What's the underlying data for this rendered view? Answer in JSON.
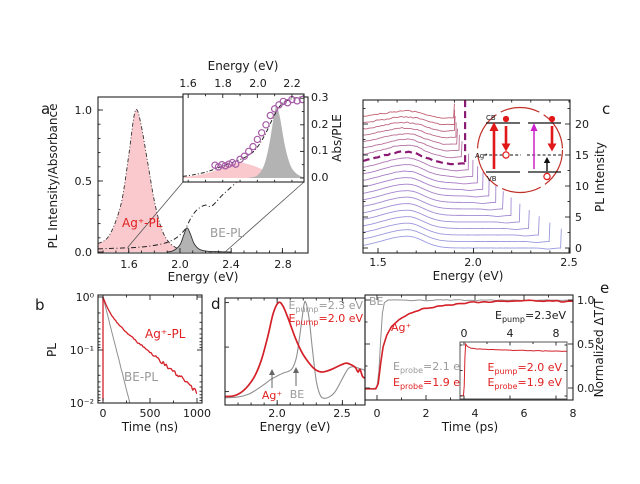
{
  "figure": {
    "panel_letters": {
      "a": "a",
      "b": "b",
      "c": "c",
      "d": "d",
      "e": "e"
    },
    "colors": {
      "red": "#d42028",
      "red_text": "#e01f1f",
      "gray_curve": "#909090",
      "gray_text": "#9a9a9a",
      "pink_fill": "#f9c9cd",
      "gray_fill": "#b3b3b3",
      "purple_marker": "#a65ba6",
      "waterfall_bottom": "#9a9ce0",
      "waterfall_mid": "#a87cc6",
      "waterfall_top": "#c45f70",
      "waterfall_bold": "#8b1a72",
      "magenta": "#cc22cc",
      "black": "#1a1a1a"
    },
    "diagram": {
      "cb": "CB",
      "ag": "Ag⁺",
      "vb": "VB"
    }
  },
  "chart_data": [
    {
      "id": "a_main",
      "type": "area",
      "title": "",
      "xlabel": "Energy (eV)",
      "ylabel": "PL Intensity/Absorbance",
      "xlim": [
        1.36,
        3.0
      ],
      "ylim": [
        0,
        1.09
      ],
      "xticks": [
        1.6,
        2.0,
        2.4,
        2.8
      ],
      "xticks_text": [
        "1.6",
        "2.0",
        "2.4",
        "2.8"
      ],
      "yticks": [
        0.0,
        0.5,
        1.0
      ],
      "yticks_text": [
        "0.0",
        "0.5",
        "1.0"
      ],
      "ag_label": "Ag⁺-PL",
      "be_label": "BE-PL",
      "series": {
        "ag_pl": [
          [
            1.36,
            0.06
          ],
          [
            1.41,
            0.08
          ],
          [
            1.45,
            0.12
          ],
          [
            1.5,
            0.22
          ],
          [
            1.55,
            0.38
          ],
          [
            1.6,
            0.68
          ],
          [
            1.64,
            0.95
          ],
          [
            1.665,
            1.0
          ],
          [
            1.7,
            0.88
          ],
          [
            1.75,
            0.62
          ],
          [
            1.8,
            0.36
          ],
          [
            1.85,
            0.18
          ],
          [
            1.9,
            0.085
          ],
          [
            1.96,
            0.035
          ],
          [
            2.02,
            0.015
          ],
          [
            2.1,
            0.005
          ],
          [
            2.2,
            0.002
          ],
          [
            2.35,
            0.001
          ]
        ],
        "be_pl": [
          [
            1.9,
            0.0
          ],
          [
            1.95,
            0.01
          ],
          [
            2.0,
            0.05
          ],
          [
            2.03,
            0.12
          ],
          [
            2.055,
            0.17
          ],
          [
            2.08,
            0.13
          ],
          [
            2.11,
            0.06
          ],
          [
            2.15,
            0.02
          ],
          [
            2.2,
            0.007
          ],
          [
            2.3,
            0.002
          ],
          [
            2.4,
            0.0
          ]
        ],
        "absorbance": [
          [
            1.36,
            0.022
          ],
          [
            1.45,
            0.025
          ],
          [
            1.55,
            0.028
          ],
          [
            1.65,
            0.032
          ],
          [
            1.75,
            0.04
          ],
          [
            1.85,
            0.055
          ],
          [
            1.92,
            0.075
          ],
          [
            1.98,
            0.105
          ],
          [
            2.04,
            0.16
          ],
          [
            2.08,
            0.23
          ],
          [
            2.12,
            0.285
          ],
          [
            2.16,
            0.315
          ],
          [
            2.2,
            0.33
          ],
          [
            2.24,
            0.32
          ],
          [
            2.28,
            0.35
          ],
          [
            2.33,
            0.4
          ],
          [
            2.38,
            0.44
          ],
          [
            2.44,
            0.49
          ]
        ]
      }
    },
    {
      "id": "a_inset",
      "type": "scatter+area",
      "xlabel": "Energy (eV)",
      "ylabel": "Abs/PLE",
      "xlim": [
        1.57,
        2.27
      ],
      "ylim": [
        0,
        0.32
      ],
      "xticks": [
        1.6,
        1.8,
        2.0,
        2.2
      ],
      "xticks_text": [
        "1.6",
        "1.8",
        "2.0",
        "2.2"
      ],
      "yticks": [
        0.0,
        0.1,
        0.2,
        0.3
      ],
      "yticks_text": [
        "0.0",
        "0.1",
        "0.2",
        "0.3"
      ],
      "ple_circles": [
        [
          1.755,
          0.048
        ],
        [
          1.775,
          0.042
        ],
        [
          1.795,
          0.05
        ],
        [
          1.815,
          0.046
        ],
        [
          1.835,
          0.052
        ],
        [
          1.855,
          0.058
        ],
        [
          1.875,
          0.052
        ],
        [
          1.9,
          0.07
        ],
        [
          1.925,
          0.082
        ],
        [
          1.95,
          0.1
        ],
        [
          1.975,
          0.118
        ],
        [
          2.0,
          0.145
        ],
        [
          2.025,
          0.17
        ],
        [
          2.05,
          0.2
        ],
        [
          2.075,
          0.235
        ],
        [
          2.1,
          0.26
        ],
        [
          2.125,
          0.275
        ],
        [
          2.15,
          0.288
        ],
        [
          2.175,
          0.283
        ],
        [
          2.2,
          0.295
        ],
        [
          2.23,
          0.29
        ],
        [
          2.26,
          0.295
        ]
      ],
      "absorbance": [
        [
          1.57,
          0.006
        ],
        [
          1.63,
          0.012
        ],
        [
          1.7,
          0.022
        ],
        [
          1.76,
          0.035
        ],
        [
          1.82,
          0.05
        ],
        [
          1.87,
          0.062
        ],
        [
          1.92,
          0.075
        ],
        [
          1.97,
          0.095
        ],
        [
          2.01,
          0.125
        ],
        [
          2.05,
          0.17
        ],
        [
          2.09,
          0.225
        ],
        [
          2.13,
          0.27
        ],
        [
          2.17,
          0.29
        ],
        [
          2.21,
          0.3
        ],
        [
          2.25,
          0.305
        ],
        [
          2.27,
          0.31
        ]
      ],
      "ag_band": [
        [
          1.57,
          0.004
        ],
        [
          1.65,
          0.01
        ],
        [
          1.72,
          0.02
        ],
        [
          1.78,
          0.035
        ],
        [
          1.84,
          0.05
        ],
        [
          1.9,
          0.058
        ],
        [
          1.96,
          0.05
        ],
        [
          2.02,
          0.035
        ],
        [
          2.08,
          0.02
        ],
        [
          2.14,
          0.01
        ],
        [
          2.2,
          0.004
        ],
        [
          2.27,
          0.001
        ]
      ],
      "be_band": [
        [
          1.95,
          0.001
        ],
        [
          2.0,
          0.01
        ],
        [
          2.04,
          0.05
        ],
        [
          2.07,
          0.13
        ],
        [
          2.095,
          0.23
        ],
        [
          2.11,
          0.27
        ],
        [
          2.13,
          0.23
        ],
        [
          2.16,
          0.12
        ],
        [
          2.19,
          0.05
        ],
        [
          2.22,
          0.02
        ],
        [
          2.25,
          0.007
        ],
        [
          2.27,
          0.003
        ]
      ]
    },
    {
      "id": "c",
      "type": "line-waterfall",
      "xlabel": "Energy (eV)",
      "ylabel_right": "PL Intensity",
      "xlim": [
        1.42,
        2.505
      ],
      "ylim": [
        0,
        24.2
      ],
      "xticks": [
        1.5,
        2.0,
        2.5
      ],
      "xticks_text": [
        "1.5",
        "2.0",
        "2.5"
      ],
      "yticks": [
        0,
        5,
        10,
        15,
        20
      ],
      "yticks_text": [
        "0",
        "5",
        "10",
        "15",
        "20"
      ],
      "n_curves": 21,
      "offset_step": 1.05,
      "peak_center": 1.655,
      "peak_amp": 1.9,
      "cutoffs": [
        2.46,
        2.4,
        2.344,
        2.292,
        2.243,
        2.197,
        2.156,
        2.117,
        2.082,
        2.05,
        2.022,
        1.997,
        1.975,
        1.956,
        1.94,
        1.926,
        1.916,
        1.909,
        1.904,
        1.901,
        1.9
      ],
      "bold_index": 13
    },
    {
      "id": "b",
      "type": "line-log",
      "xlabel": "Time (ns)",
      "ylabel": "PL",
      "xlim": [
        -50,
        1050
      ],
      "ylim_log": [
        0.01,
        1
      ],
      "xticks": [
        0,
        500,
        1000
      ],
      "xticks_text": [
        "0",
        "500",
        "1000"
      ],
      "yticks": [
        1,
        0.1,
        0.01
      ],
      "yticks_text": [
        "10⁰",
        "10⁻¹",
        "10⁻²"
      ],
      "ag_label": "Ag⁺-PL",
      "be_label": "BE-PL",
      "decays": {
        "ag": {
          "a1": 0.52,
          "tau1": 55,
          "a2": 0.48,
          "tau2": 300
        },
        "be": {
          "a1": 1.0,
          "tau1": 62
        }
      }
    },
    {
      "id": "d",
      "type": "line",
      "xlabel": "Energy (eV)",
      "xlim": [
        1.6,
        2.674
      ],
      "ylim": [
        -0.15,
        1.05
      ],
      "xticks": [
        2.0,
        2.5
      ],
      "xticks_text": [
        "2.0",
        "2.5"
      ],
      "legend": {
        "pump23": {
          "e": "E",
          "sub": "pump",
          "rest": "=2.3 eV"
        },
        "pump20": {
          "e": "E",
          "sub": "pump",
          "rest": "=2.0 eV"
        }
      },
      "arrow_labels": {
        "ag": "Ag⁺",
        "be": "BE"
      },
      "arrows_x": [
        1.955,
        2.164
      ],
      "series": {
        "pump23": [
          [
            1.6,
            -0.07
          ],
          [
            1.7,
            -0.06
          ],
          [
            1.78,
            -0.03
          ],
          [
            1.84,
            0.02
          ],
          [
            1.9,
            0.08
          ],
          [
            1.95,
            0.135
          ],
          [
            2.0,
            0.175
          ],
          [
            2.05,
            0.21
          ],
          [
            2.09,
            0.23
          ],
          [
            2.12,
            0.27
          ],
          [
            2.15,
            0.4
          ],
          [
            2.18,
            0.7
          ],
          [
            2.205,
            0.97
          ],
          [
            2.22,
            1.0
          ],
          [
            2.245,
            0.82
          ],
          [
            2.27,
            0.48
          ],
          [
            2.3,
            0.12
          ],
          [
            2.33,
            -0.04
          ],
          [
            2.36,
            -0.075
          ],
          [
            2.4,
            -0.06
          ],
          [
            2.44,
            -0.01
          ],
          [
            2.48,
            0.09
          ],
          [
            2.52,
            0.2
          ],
          [
            2.55,
            0.265
          ],
          [
            2.59,
            0.28
          ],
          [
            2.63,
            0.26
          ],
          [
            2.674,
            0.24
          ]
        ],
        "pump20": [
          [
            1.6,
            -0.055
          ],
          [
            1.66,
            -0.05
          ],
          [
            1.7,
            -0.03
          ],
          [
            1.74,
            0.01
          ],
          [
            1.78,
            0.07
          ],
          [
            1.83,
            0.18
          ],
          [
            1.88,
            0.36
          ],
          [
            1.93,
            0.63
          ],
          [
            1.97,
            0.88
          ],
          [
            2.01,
            1.0
          ],
          [
            2.045,
            0.96
          ],
          [
            2.09,
            0.8
          ],
          [
            2.14,
            0.6
          ],
          [
            2.19,
            0.44
          ],
          [
            2.24,
            0.33
          ],
          [
            2.29,
            0.25
          ],
          [
            2.34,
            0.22
          ],
          [
            2.39,
            0.235
          ],
          [
            2.44,
            0.265
          ],
          [
            2.49,
            0.3
          ],
          [
            2.53,
            0.32
          ],
          [
            2.57,
            0.3
          ],
          [
            2.6,
            0.27
          ],
          [
            2.62,
            0.22
          ],
          [
            2.635,
            0.25
          ],
          [
            2.655,
            0.17
          ],
          [
            2.674,
            0.15
          ]
        ]
      }
    },
    {
      "id": "e",
      "type": "line",
      "xlabel": "Time (ps)",
      "ylabel_right": "Normalized ΔT/T",
      "xlim": [
        -0.49,
        8
      ],
      "ylim": [
        -0.09,
        1.07
      ],
      "xticks": [
        0,
        2,
        4,
        6,
        8
      ],
      "xticks_text": [
        "0",
        "2",
        "4",
        "6",
        "8"
      ],
      "yticks": [
        0.0,
        0.5,
        1.0
      ],
      "yticks_text": [
        "0.0",
        "0.5",
        "1.0"
      ],
      "labels": {
        "be": "BE",
        "ag": "Ag⁺",
        "probe21": {
          "e": "E",
          "sub": "probe",
          "rest": "=2.1 eV"
        },
        "probe19": {
          "e": "E",
          "sub": "probe",
          "rest": "=1.9 eV"
        },
        "pump23": {
          "e": "E",
          "sub": "pump",
          "rest": "=2.3eV"
        }
      },
      "series": {
        "be": [
          [
            -0.49,
            -0.005
          ],
          [
            -0.1,
            -0.005
          ],
          [
            0,
            0.01
          ],
          [
            0.08,
            0.2
          ],
          [
            0.15,
            0.55
          ],
          [
            0.22,
            0.85
          ],
          [
            0.3,
            0.97
          ],
          [
            0.45,
            1.0
          ],
          [
            0.7,
            1.0
          ],
          [
            1.2,
            0.995
          ],
          [
            2,
            0.995
          ],
          [
            3,
            1.0
          ],
          [
            4,
            0.995
          ],
          [
            5,
            1.0
          ],
          [
            6,
            0.995
          ],
          [
            7,
            1.0
          ],
          [
            8,
            0.995
          ]
        ],
        "ag": [
          [
            -0.49,
            -0.01
          ],
          [
            -0.05,
            -0.01
          ],
          [
            0.05,
            0.05
          ],
          [
            0.15,
            0.28
          ],
          [
            0.25,
            0.47
          ],
          [
            0.4,
            0.6
          ],
          [
            0.6,
            0.7
          ],
          [
            0.9,
            0.78
          ],
          [
            1.3,
            0.845
          ],
          [
            1.8,
            0.89
          ],
          [
            2.4,
            0.925
          ],
          [
            3.2,
            0.955
          ],
          [
            4,
            0.975
          ],
          [
            5,
            0.985
          ],
          [
            6,
            0.99
          ],
          [
            7,
            0.99
          ],
          [
            8,
            0.985
          ]
        ]
      }
    },
    {
      "id": "e_inset",
      "type": "line",
      "xlim": [
        -0.35,
        8.96
      ],
      "ylim": [
        -0.1,
        1.1
      ],
      "xticks": [
        0,
        4,
        8
      ],
      "xticks_text": [
        "0",
        "4",
        "8"
      ],
      "labels": {
        "pump20": {
          "e": "E",
          "sub": "pump",
          "rest": "=2.0 eV"
        },
        "probe19": {
          "e": "E",
          "sub": "probe",
          "rest": "=1.9 eV"
        }
      },
      "series": {
        "trace": [
          [
            -0.35,
            0.005
          ],
          [
            -0.05,
            0.005
          ],
          [
            0.02,
            0.2
          ],
          [
            0.08,
            0.75
          ],
          [
            0.14,
            1.02
          ],
          [
            0.3,
            0.97
          ],
          [
            0.6,
            0.94
          ],
          [
            1.2,
            0.925
          ],
          [
            2,
            0.915
          ],
          [
            3,
            0.905
          ],
          [
            4,
            0.9
          ],
          [
            5,
            0.895
          ],
          [
            6,
            0.89
          ],
          [
            7,
            0.885
          ],
          [
            8,
            0.88
          ],
          [
            8.96,
            0.875
          ]
        ]
      }
    }
  ]
}
